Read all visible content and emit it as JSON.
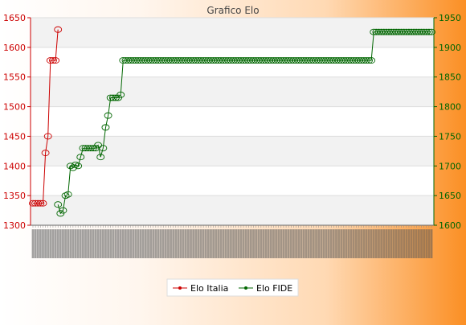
{
  "chart_data": {
    "type": "line",
    "title": "Grafico Elo",
    "xlabel": "",
    "ylabel": "",
    "left_axis": {
      "ylim": [
        1300,
        1650
      ],
      "ticks": [
        1300,
        1350,
        1400,
        1450,
        1500,
        1550,
        1600,
        1650
      ],
      "color": "#cc0000"
    },
    "right_axis": {
      "ylim": [
        1600,
        1950
      ],
      "ticks": [
        1600,
        1650,
        1700,
        1750,
        1800,
        1850,
        1900,
        1950
      ],
      "color": "#006600"
    },
    "grid": true,
    "legend_position": "bottom",
    "point_count": 160,
    "x_tick_labels_note": "dense rotated date labels, illegible",
    "series": [
      {
        "name": "Elo Italia",
        "axis": "left",
        "color": "#cc0000",
        "points": [
          [
            0,
            1337
          ],
          [
            1,
            1337
          ],
          [
            2,
            1337
          ],
          [
            3,
            1337
          ],
          [
            4,
            1337
          ],
          [
            5,
            1422
          ],
          [
            6,
            1450
          ],
          [
            7,
            1578
          ],
          [
            8,
            1578
          ],
          [
            9,
            1578
          ],
          [
            10,
            1630
          ]
        ]
      },
      {
        "name": "Elo FIDE",
        "axis": "right",
        "color": "#006600",
        "points": [
          [
            10,
            1635
          ],
          [
            11,
            1620
          ],
          [
            12,
            1625
          ],
          [
            13,
            1650
          ],
          [
            14,
            1652
          ],
          [
            15,
            1700
          ],
          [
            16,
            1697
          ],
          [
            17,
            1702
          ],
          [
            18,
            1700
          ],
          [
            19,
            1715
          ],
          [
            20,
            1730
          ],
          [
            21,
            1730
          ],
          [
            22,
            1730
          ],
          [
            23,
            1730
          ],
          [
            24,
            1730
          ],
          [
            25,
            1730
          ],
          [
            26,
            1735
          ],
          [
            27,
            1715
          ],
          [
            28,
            1730
          ],
          [
            29,
            1765
          ],
          [
            30,
            1785
          ],
          [
            31,
            1815
          ],
          [
            32,
            1815
          ],
          [
            33,
            1815
          ],
          [
            34,
            1815
          ],
          [
            35,
            1820
          ],
          [
            36,
            1878
          ],
          [
            159,
            1878
          ]
        ],
        "step_change": [
          [
            135,
            1878
          ],
          [
            136,
            1926
          ],
          [
            159,
            1926
          ]
        ]
      }
    ]
  },
  "legend": {
    "items": [
      {
        "label": "Elo Italia",
        "color": "#cc0000"
      },
      {
        "label": "Elo FIDE",
        "color": "#006600"
      }
    ]
  }
}
